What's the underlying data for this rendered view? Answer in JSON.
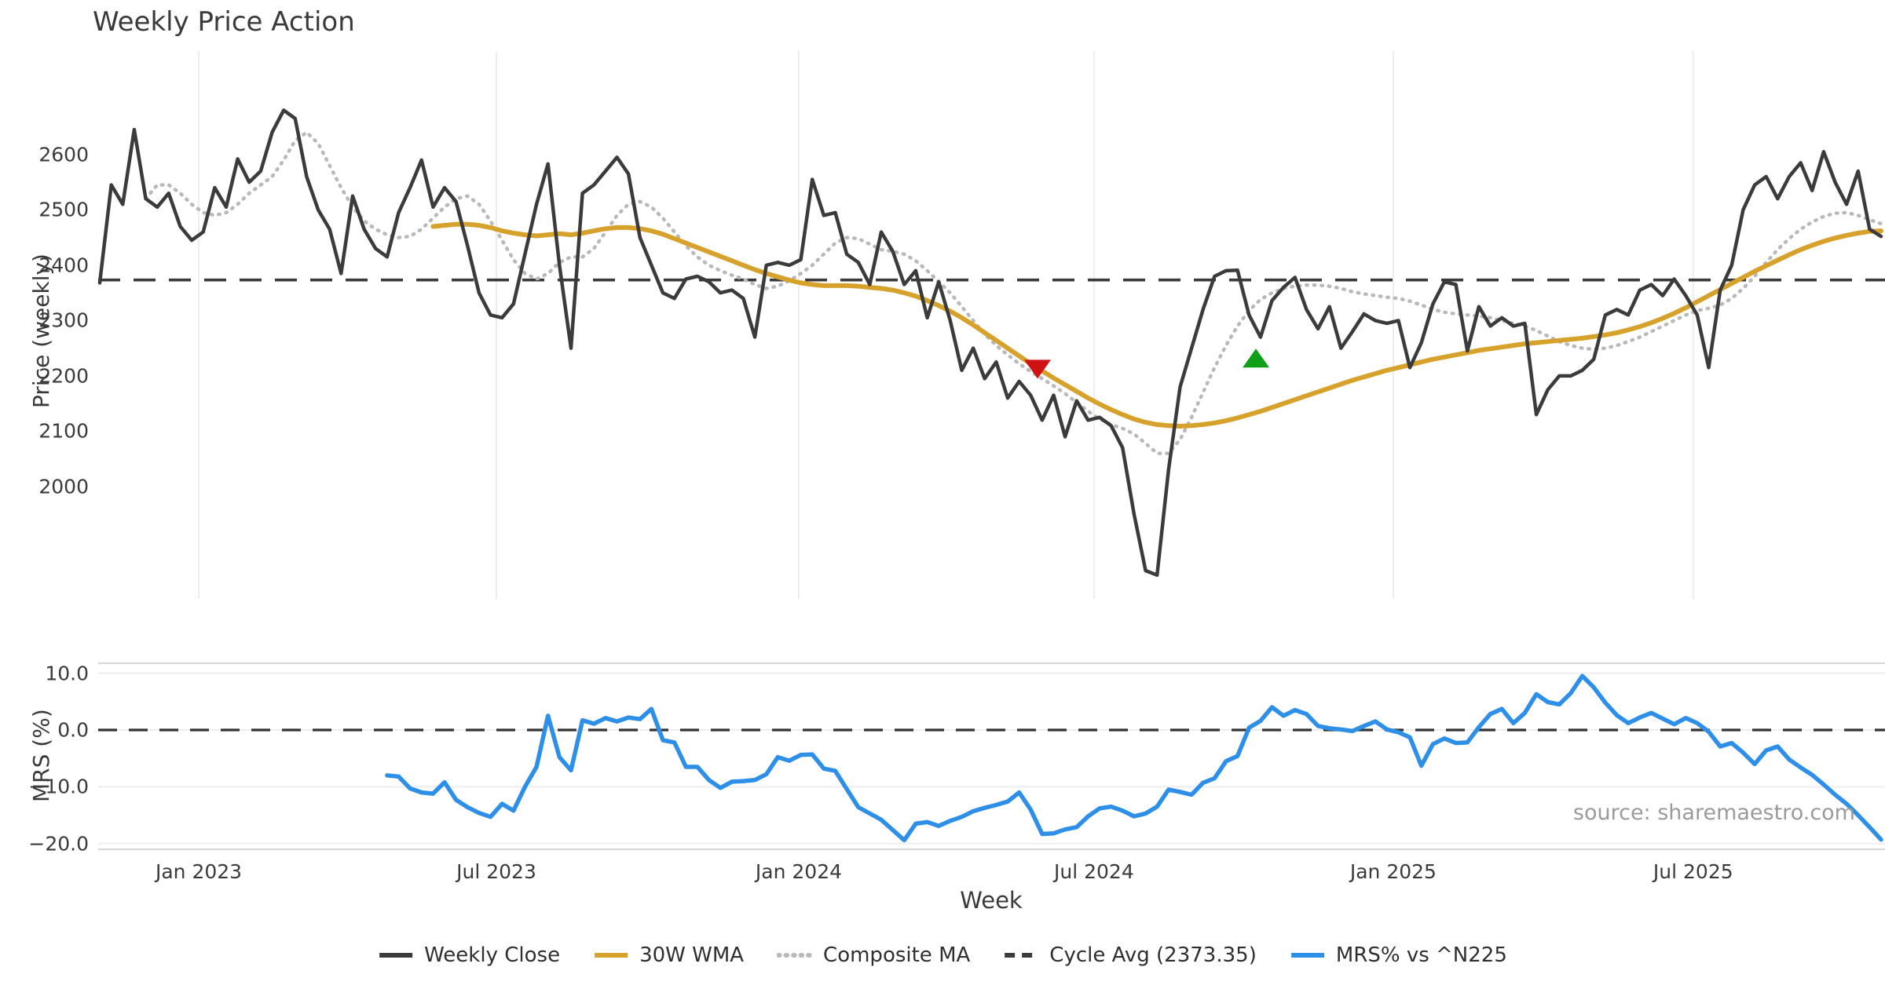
{
  "title": "Weekly Price Action",
  "source": "source: sharemaestro.com",
  "colors": {
    "close": "#3b3b3b",
    "wma": "#d7a22b",
    "composite": "#b9b9b9",
    "cycle": "#3a3a3a",
    "mrs": "#2e8fe8",
    "sell_marker": "#cf1213",
    "buy_marker": "#0fa018",
    "grid": "#ededf1",
    "spine": "#d6d6d6",
    "tick_text": "#3a3a3a"
  },
  "axes": {
    "price": {
      "label": "Price (weekly)",
      "tick_labels": [
        "2600",
        "2500",
        "2400",
        "2300",
        "2200",
        "2100",
        "2000"
      ],
      "tick_values": [
        2600,
        2500,
        2400,
        2300,
        2200,
        2100,
        2000
      ]
    },
    "mrs": {
      "label": "MRS (%)",
      "tick_labels": [
        "10.0",
        "0.0",
        "−10.0",
        "−20.0"
      ],
      "tick_values": [
        10,
        0,
        -10,
        -20
      ]
    },
    "week": {
      "label": "Week",
      "tick_labels": [
        "Jan 2023",
        "Jul 2023",
        "Jan 2024",
        "Jul 2024",
        "Jan 2025",
        "Jul 2025"
      ],
      "tick_weeks": [
        8.61,
        34.51,
        60.82,
        86.51,
        112.55,
        138.65
      ]
    }
  },
  "legend": [
    {
      "label": "Weekly Close",
      "color": "#3b3b3b",
      "style": "solid"
    },
    {
      "label": "30W WMA",
      "color": "#d7a22b",
      "style": "solid"
    },
    {
      "label": "Composite MA",
      "color": "#b9b9b9",
      "style": "dotted"
    },
    {
      "label": "Cycle Avg (2373.35)",
      "color": "#3a3a3a",
      "style": "dashed"
    },
    {
      "label": "MRS% vs ^N225",
      "color": "#2e8fe8",
      "style": "solid"
    }
  ],
  "chart_data": {
    "type": "line",
    "x_unit": "week_index",
    "x_range_weeks": [
      -0.14,
      155.34
    ],
    "top_panel": {
      "ylabel": "Price (weekly)",
      "ylim": [
        1797,
        2787
      ],
      "cycle_avg": 2373.35,
      "grid": "vertical_only",
      "series": [
        {
          "name": "Weekly Close",
          "start_week": 0,
          "values": [
            2368,
            2545,
            2510,
            2645,
            2520,
            2505,
            2530,
            2470,
            2445,
            2460,
            2540,
            2505,
            2592,
            2550,
            2570,
            2640,
            2680,
            2665,
            2560,
            2500,
            2465,
            2385,
            2525,
            2465,
            2430,
            2415,
            2495,
            2540,
            2590,
            2505,
            2540,
            2515,
            2435,
            2350,
            2310,
            2305,
            2330,
            2420,
            2510,
            2583,
            2400,
            2250,
            2530,
            2545,
            2570,
            2595,
            2565,
            2450,
            2400,
            2350,
            2340,
            2375,
            2380,
            2370,
            2350,
            2355,
            2340,
            2270,
            2400,
            2405,
            2400,
            2410,
            2555,
            2490,
            2495,
            2420,
            2405,
            2365,
            2460,
            2425,
            2365,
            2390,
            2305,
            2370,
            2300,
            2210,
            2250,
            2195,
            2225,
            2160,
            2190,
            2165,
            2120,
            2165,
            2090,
            2155,
            2120,
            2125,
            2110,
            2070,
            1950,
            1848,
            1840,
            2030,
            2180,
            2250,
            2320,
            2380,
            2390,
            2391,
            2310,
            2270,
            2336,
            2360,
            2378,
            2320,
            2285,
            2325,
            2250,
            2280,
            2312,
            2300,
            2295,
            2300,
            2215,
            2260,
            2330,
            2370,
            2365,
            2245,
            2325,
            2290,
            2305,
            2290,
            2295,
            2130,
            2175,
            2200,
            2200,
            2210,
            2230,
            2310,
            2320,
            2310,
            2355,
            2365,
            2345,
            2375,
            2345,
            2310,
            2215,
            2355,
            2400,
            2500,
            2545,
            2560,
            2520,
            2560,
            2585,
            2535,
            2605,
            2550,
            2510,
            2570,
            2465,
            2452
          ]
        },
        {
          "name": "30W WMA",
          "start_week": 29,
          "values": [
            2470,
            2472,
            2474,
            2474,
            2472,
            2468,
            2462,
            2458,
            2455,
            2453,
            2455,
            2457,
            2455,
            2458,
            2462,
            2466,
            2468,
            2468,
            2466,
            2462,
            2456,
            2448,
            2440,
            2432,
            2424,
            2416,
            2408,
            2400,
            2392,
            2385,
            2379,
            2373,
            2368,
            2365,
            2363,
            2363,
            2363,
            2362,
            2360,
            2358,
            2355,
            2350,
            2344,
            2336,
            2327,
            2317,
            2305,
            2292,
            2278,
            2264,
            2250,
            2236,
            2222,
            2209,
            2196,
            2184,
            2172,
            2160,
            2149,
            2139,
            2130,
            2122,
            2116,
            2112,
            2110,
            2109,
            2110,
            2112,
            2115,
            2119,
            2124,
            2130,
            2136,
            2143,
            2150,
            2157,
            2164,
            2171,
            2178,
            2185,
            2192,
            2198,
            2204,
            2210,
            2215,
            2220,
            2225,
            2230,
            2234,
            2238,
            2242,
            2246,
            2249,
            2252,
            2255,
            2258,
            2260,
            2262,
            2264,
            2266,
            2268,
            2271,
            2274,
            2278,
            2283,
            2289,
            2296,
            2304,
            2313,
            2323,
            2334,
            2345,
            2356,
            2367,
            2378,
            2389,
            2399,
            2409,
            2419,
            2428,
            2436,
            2443,
            2449,
            2454,
            2458,
            2461,
            2462
          ]
        },
        {
          "name": "Composite MA",
          "start_week": 4,
          "values": [
            2520,
            2545,
            2545,
            2530,
            2510,
            2495,
            2490,
            2495,
            2510,
            2530,
            2545,
            2560,
            2590,
            2625,
            2640,
            2620,
            2580,
            2540,
            2505,
            2480,
            2465,
            2455,
            2450,
            2452,
            2465,
            2485,
            2505,
            2520,
            2525,
            2510,
            2480,
            2445,
            2410,
            2385,
            2375,
            2385,
            2405,
            2415,
            2415,
            2430,
            2460,
            2490,
            2510,
            2515,
            2505,
            2485,
            2460,
            2435,
            2415,
            2400,
            2390,
            2382,
            2375,
            2365,
            2358,
            2362,
            2372,
            2385,
            2400,
            2420,
            2440,
            2450,
            2448,
            2438,
            2428,
            2425,
            2420,
            2408,
            2390,
            2370,
            2350,
            2325,
            2300,
            2275,
            2255,
            2238,
            2222,
            2208,
            2195,
            2182,
            2168,
            2152,
            2136,
            2122,
            2112,
            2105,
            2095,
            2078,
            2060,
            2060,
            2085,
            2125,
            2170,
            2215,
            2255,
            2290,
            2318,
            2338,
            2350,
            2358,
            2362,
            2364,
            2364,
            2362,
            2358,
            2352,
            2348,
            2345,
            2342,
            2340,
            2335,
            2328,
            2320,
            2315,
            2312,
            2310,
            2308,
            2305,
            2300,
            2295,
            2290,
            2282,
            2272,
            2262,
            2255,
            2250,
            2248,
            2250,
            2255,
            2262,
            2270,
            2280,
            2290,
            2300,
            2310,
            2318,
            2322,
            2328,
            2340,
            2358,
            2380,
            2405,
            2428,
            2448,
            2465,
            2478,
            2488,
            2494,
            2495,
            2490,
            2482,
            2475
          ]
        }
      ],
      "markers": [
        {
          "kind": "sell",
          "shape": "triangle-down",
          "week": 81.6,
          "price": 2212,
          "color": "#cf1213"
        },
        {
          "kind": "buy",
          "shape": "triangle-up",
          "week": 100.6,
          "price": 2232,
          "color": "#0fa018"
        }
      ]
    },
    "bottom_panel": {
      "ylabel": "MRS (%)",
      "ylim": [
        -21.0,
        11.74
      ],
      "zero_line": 0,
      "grid": "horizontal_only",
      "series": [
        {
          "name": "MRS% vs ^N225",
          "start_week": 25,
          "values": [
            -8.0,
            -8.2,
            -10.3,
            -11.0,
            -11.2,
            -9.2,
            -12.3,
            -13.6,
            -14.6,
            -15.3,
            -13.0,
            -14.2,
            -10.0,
            -6.5,
            2.5,
            -4.8,
            -7.1,
            1.7,
            1.1,
            2.1,
            1.5,
            2.2,
            1.9,
            3.7,
            -1.8,
            -2.2,
            -6.5,
            -6.5,
            -8.8,
            -10.2,
            -9.1,
            -9.0,
            -8.8,
            -7.8,
            -4.8,
            -5.4,
            -4.4,
            -4.3,
            -6.8,
            -7.2,
            -10.4,
            -13.6,
            -14.7,
            -15.8,
            -17.6,
            -19.4,
            -16.5,
            -16.2,
            -16.9,
            -16.0,
            -15.3,
            -14.3,
            -13.7,
            -13.2,
            -12.6,
            -11.0,
            -14.0,
            -18.3,
            -18.2,
            -17.5,
            -17.1,
            -15.2,
            -13.8,
            -13.5,
            -14.2,
            -15.2,
            -14.7,
            -13.5,
            -10.5,
            -10.9,
            -11.4,
            -9.3,
            -8.5,
            -5.5,
            -4.6,
            0.4,
            1.6,
            4.0,
            2.5,
            3.5,
            2.8,
            0.7,
            0.3,
            0.1,
            -0.2,
            0.7,
            1.5,
            0.1,
            -0.4,
            -1.3,
            -6.3,
            -2.5,
            -1.5,
            -2.3,
            -2.2,
            0.5,
            2.8,
            3.7,
            1.2,
            3.0,
            6.3,
            4.9,
            4.5,
            6.5,
            9.5,
            7.5,
            4.8,
            2.6,
            1.2,
            2.2,
            3.0,
            2.0,
            1.0,
            2.1,
            1.2,
            -0.3,
            -2.9,
            -2.3,
            -4.0,
            -6.0,
            -3.6,
            -2.9,
            -5.2,
            -6.6,
            -7.9,
            -9.6,
            -11.4,
            -13.0,
            -15.0,
            -17.1,
            -19.3
          ]
        }
      ]
    }
  }
}
